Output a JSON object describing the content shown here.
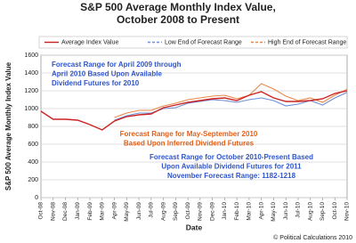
{
  "chart_data": {
    "type": "line",
    "title": [
      "S&P 500 Average Monthly Index Value,",
      "October 2008 to Present"
    ],
    "x_label": "Date",
    "y_label": "S&P 500 Average Monthly Index Value",
    "categories": [
      "Oct-08",
      "Nov-08",
      "Dec-08",
      "Jan-09",
      "Feb-09",
      "Mar-09",
      "Apr-09",
      "May-09",
      "Jun-09",
      "Jul-09",
      "Aug-09",
      "Sep-09",
      "Oct-09",
      "Nov-09",
      "Dec-09",
      "Jan-10",
      "Feb-10",
      "Mar-10",
      "Apr-10",
      "May-10",
      "Jun-10",
      "Jul-10",
      "Aug-10",
      "Sep-10",
      "Oct-10",
      "Nov-10"
    ],
    "series": [
      {
        "name": "Average Index Value",
        "color": "#cc2222",
        "values": [
          970,
          880,
          880,
          870,
          820,
          760,
          860,
          910,
          930,
          940,
          1010,
          1040,
          1070,
          1090,
          1110,
          1120,
          1090,
          1150,
          1190,
          1120,
          1080,
          1080,
          1090,
          1110,
          1170,
          1200
        ]
      },
      {
        "name": "Low End of Forecast Range",
        "color": "#6f8fd8",
        "values": [
          null,
          null,
          null,
          null,
          null,
          null,
          870,
          920,
          950,
          950,
          1000,
          1010,
          1060,
          1080,
          1100,
          1090,
          1070,
          1100,
          1120,
          1090,
          1030,
          1050,
          1090,
          1040,
          1120,
          1182
        ]
      },
      {
        "name": "High End of Forecast Range",
        "color": "#e8884a",
        "values": [
          null,
          null,
          null,
          null,
          null,
          null,
          900,
          950,
          980,
          980,
          1030,
          1060,
          1100,
          1120,
          1140,
          1150,
          1110,
          1150,
          1280,
          1220,
          1140,
          1090,
          1120,
          1070,
          1150,
          1218
        ]
      }
    ],
    "ylim": [
      0,
      1600
    ],
    "yticks": [
      0,
      200,
      400,
      600,
      800,
      1000,
      1200,
      1400,
      1600
    ],
    "grid": true,
    "legend": "top",
    "annotations": [
      {
        "lines": [
          "Forecast Range for April 2009 through",
          "April 2010 Based Upon Available",
          "Dividend Futures for 2010"
        ],
        "color": "#2f55c8"
      },
      {
        "lines": [
          "Forecast Range for May-September 2010",
          "Based Upon Inferred Dividend Futures"
        ],
        "color": "#e0601a"
      },
      {
        "lines": [
          "Forecast Range for October 2010-Present Based",
          "Upon Available Dividend Futures for 2011",
          "November Forecast Range: 1182-1218"
        ],
        "color": "#2f55c8"
      }
    ],
    "credit": "© Political Calculations 2010"
  }
}
